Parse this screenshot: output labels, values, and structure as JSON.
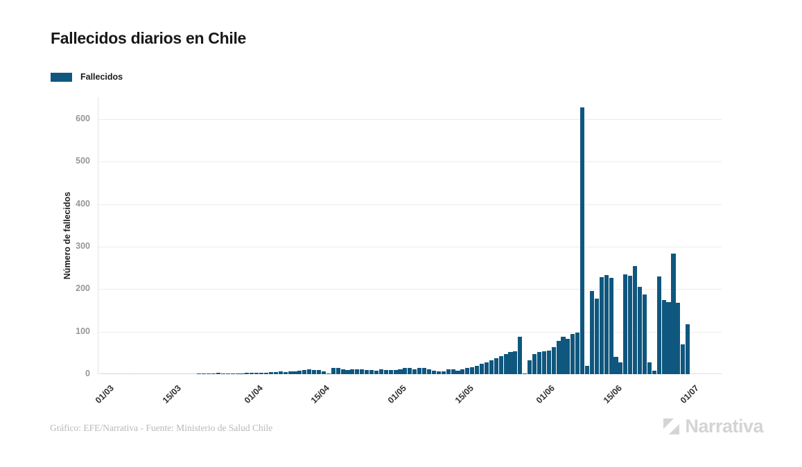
{
  "page": {
    "background": "#ffffff"
  },
  "header": {
    "title": "Fallecidos diarios en Chile"
  },
  "legend": {
    "items": [
      {
        "label": "Fallecidos",
        "color": "#0f577e"
      }
    ]
  },
  "axes": {
    "y_label": "Número de fallecidos",
    "y_ticks": [
      "0",
      "100",
      "200",
      "300",
      "400",
      "500",
      "600"
    ],
    "x_ticks": [
      "01/03",
      "15/03",
      "01/04",
      "15/04",
      "01/05",
      "15/05",
      "01/06",
      "15/06",
      "01/07"
    ]
  },
  "footer": {
    "credit": "Gráfico: EFE/Narrativa - Fuente: Ministerio de Salud Chile",
    "logo_text": "Narrativa"
  },
  "chart_data": {
    "type": "bar",
    "title": "Fallecidos diarios en Chile",
    "series_name": "Fallecidos",
    "xlabel": "",
    "ylabel": "Número de fallecidos",
    "bar_color": "#0f577e",
    "zero_bar_color": "#ccd6dd",
    "grid": true,
    "legend_position": "top-left",
    "ylim": [
      0,
      650
    ],
    "yticks": [
      0,
      100,
      200,
      300,
      400,
      500,
      600
    ],
    "x_unit": "day",
    "x_range": "01/03 - 01/07",
    "xticks": [
      {
        "label": "01/03",
        "day_index": 0
      },
      {
        "label": "15/03",
        "day_index": 14
      },
      {
        "label": "01/04",
        "day_index": 31
      },
      {
        "label": "15/04",
        "day_index": 45
      },
      {
        "label": "01/05",
        "day_index": 61
      },
      {
        "label": "15/05",
        "day_index": 75
      },
      {
        "label": "01/06",
        "day_index": 92
      },
      {
        "label": "15/06",
        "day_index": 106
      },
      {
        "label": "01/07",
        "day_index": 122
      }
    ],
    "values": [
      0,
      0,
      0,
      0,
      0,
      0,
      0,
      0,
      0,
      0,
      0,
      0,
      0,
      0,
      0,
      0,
      0,
      0,
      0,
      0,
      1,
      1,
      1,
      2,
      3,
      1,
      2,
      2,
      2,
      2,
      4,
      3,
      3,
      4,
      4,
      5,
      5,
      6,
      5,
      6,
      7,
      8,
      9,
      12,
      9,
      9,
      7,
      2,
      15,
      14,
      11,
      9,
      11,
      12,
      11,
      9,
      9,
      8,
      11,
      9,
      9,
      9,
      11,
      14,
      15,
      12,
      15,
      15,
      12,
      8,
      6,
      7,
      11,
      11,
      8,
      11,
      14,
      17,
      20,
      24,
      28,
      33,
      38,
      43,
      47,
      52,
      54,
      88,
      2,
      32,
      48,
      53,
      54,
      56,
      63,
      79,
      88,
      83,
      94,
      98,
      628,
      19,
      196,
      177,
      228,
      233,
      226,
      41,
      28,
      235,
      231,
      255,
      205,
      187,
      27,
      8,
      230,
      175,
      170,
      283,
      168,
      70,
      117
    ]
  }
}
